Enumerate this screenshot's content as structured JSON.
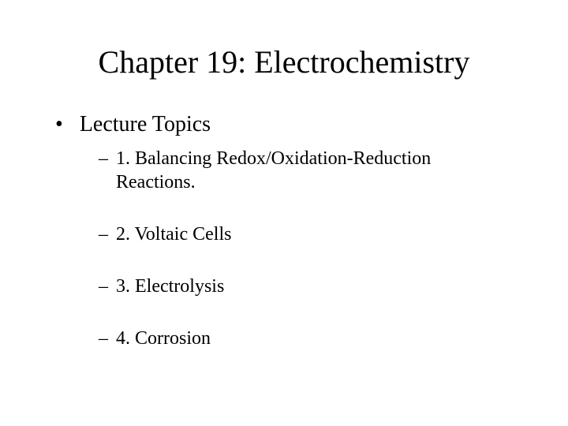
{
  "slide": {
    "title": "Chapter 19:  Electrochemistry",
    "main_bullet": "Lecture Topics",
    "sub_items": [
      "1.  Balancing Redox/Oxidation-Reduction Reactions.",
      "2.  Voltaic Cells",
      "3. Electrolysis",
      "4.  Corrosion"
    ],
    "colors": {
      "background": "#ffffff",
      "text": "#000000"
    },
    "typography": {
      "font_family": "Times New Roman",
      "title_fontsize": 40,
      "main_bullet_fontsize": 28,
      "sub_bullet_fontsize": 24
    }
  }
}
